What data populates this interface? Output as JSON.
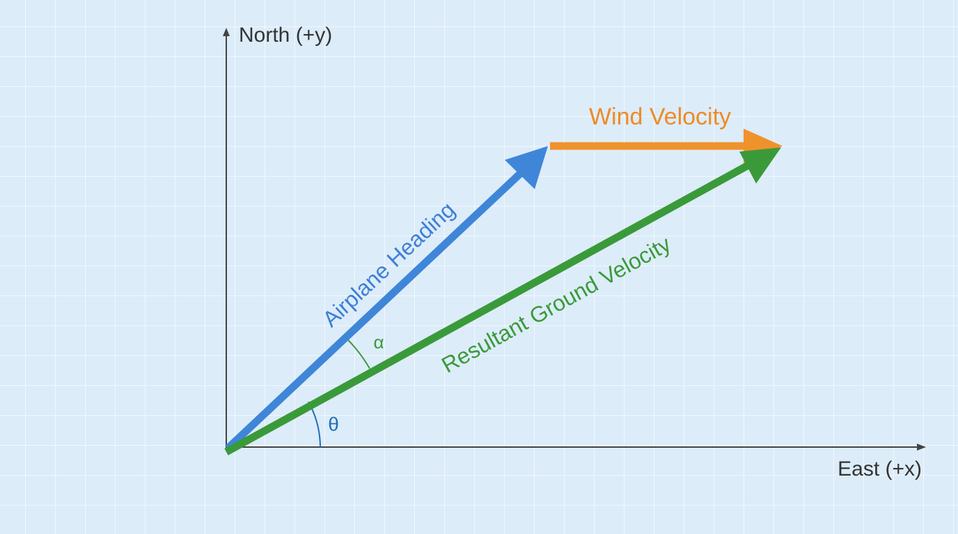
{
  "axes": {
    "y_label": "North (+y)",
    "x_label": "East (+x)"
  },
  "vectors": {
    "wind": "Wind Velocity",
    "heading": "Airplane Heading",
    "resultant": "Resultant Ground Velocity"
  },
  "angles": {
    "alpha": "α",
    "theta": "θ"
  }
}
